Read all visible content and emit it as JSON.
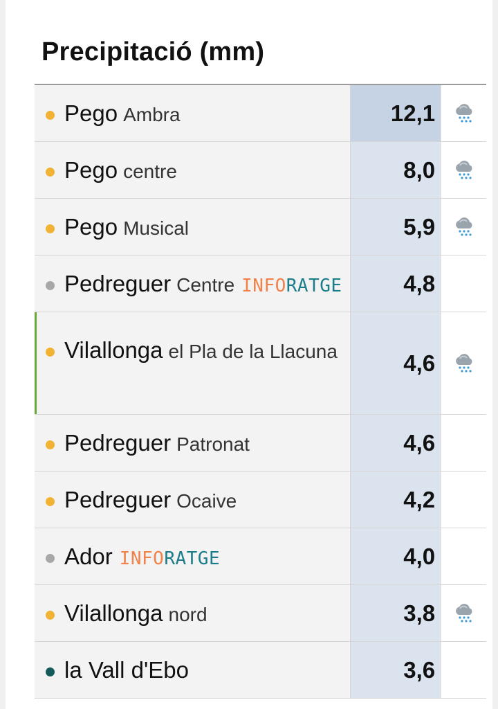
{
  "title": "Precipitació (mm)",
  "rows": [
    {
      "place": "Pego",
      "detail": "Ambra",
      "badge": "",
      "value": "12,1",
      "dot": "orange",
      "icon": "rain-cloud-icon"
    },
    {
      "place": "Pego",
      "detail": "centre",
      "badge": "",
      "value": "8,0",
      "dot": "orange",
      "icon": "rain-cloud-icon"
    },
    {
      "place": "Pego",
      "detail": "Musical",
      "badge": "",
      "value": "5,9",
      "dot": "orange",
      "icon": "rain-cloud-icon"
    },
    {
      "place": "Pedreguer",
      "detail": "Centre",
      "badge": "INFORATGE",
      "value": "4,8",
      "dot": "gray",
      "icon": ""
    },
    {
      "place": "Vilallonga",
      "detail": "el Pla de la Llacuna",
      "badge": "",
      "value": "4,6",
      "dot": "orange",
      "icon": "rain-cloud-icon"
    },
    {
      "place": "Pedreguer",
      "detail": "Patronat",
      "badge": "",
      "value": "4,6",
      "dot": "orange",
      "icon": ""
    },
    {
      "place": "Pedreguer",
      "detail": "Ocaive",
      "badge": "",
      "value": "4,2",
      "dot": "orange",
      "icon": ""
    },
    {
      "place": "Ador",
      "detail": "",
      "badge": "INFORATGE",
      "value": "4,0",
      "dot": "gray",
      "icon": ""
    },
    {
      "place": "Vilallonga",
      "detail": "nord",
      "badge": "",
      "value": "3,8",
      "dot": "orange",
      "icon": "rain-cloud-icon"
    },
    {
      "place": "la Vall d'Ebo",
      "detail": "",
      "badge": "",
      "value": "3,6",
      "dot": "teal",
      "icon": ""
    }
  ],
  "badge_parts": {
    "left": "INFO",
    "right": "RATGE"
  },
  "colors": {
    "dot_orange": "#f2b233",
    "dot_gray": "#a7a7a7",
    "dot_teal": "#125b5a",
    "value_bg": "#dbe3ef",
    "badge_orange": "#f0824a",
    "badge_teal": "#1b7c8a"
  }
}
